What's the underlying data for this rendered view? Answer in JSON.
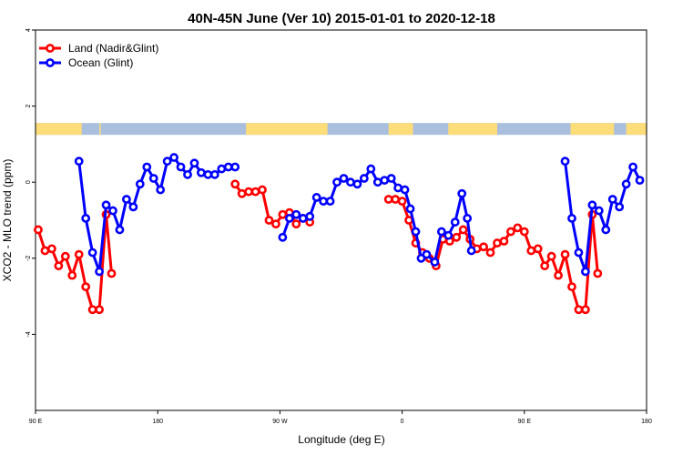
{
  "chart_data": {
    "type": "line",
    "title": "40N-45N June (Ver 10)   2015-01-01 to 2020-12-18",
    "xlabel": "Longitude (deg E)",
    "ylabel": "XCO2 - MLO trend (ppm)",
    "x_tick_labels": [
      "90 E",
      "180",
      "90 W",
      "0",
      "90 E",
      "180"
    ],
    "x_tick_values": [
      90,
      180,
      270,
      360,
      450,
      540
    ],
    "xlim": [
      90,
      540
    ],
    "y_tick_labels": [
      "-4",
      "-2",
      "0",
      "2",
      "4"
    ],
    "y_tick_values": [
      -4,
      -2,
      0,
      2,
      4
    ],
    "ylim": [
      -6,
      4
    ],
    "grid": false,
    "legend_position": "top-left",
    "land_ocean_strip": {
      "y": 1.4,
      "colors": {
        "land": "#fddc7a",
        "ocean": "#a9bfdd"
      },
      "land_segments": [
        [
          90,
          124
        ],
        [
          137,
          138
        ],
        [
          245,
          305
        ],
        [
          350,
          368
        ],
        [
          394,
          430
        ],
        [
          484,
          516
        ],
        [
          525,
          540
        ]
      ]
    },
    "series": [
      {
        "name": "Land (Nadir&Glint)",
        "color": "#ff0000",
        "points": [
          [
            92,
            -1.25
          ],
          [
            97,
            -1.8
          ],
          [
            102,
            -1.75
          ],
          [
            107,
            -2.2
          ],
          [
            112,
            -1.95
          ],
          [
            117,
            -2.45
          ],
          [
            122,
            -1.9
          ],
          [
            127,
            -2.75
          ],
          [
            132,
            -3.35
          ],
          [
            137,
            -3.35
          ],
          [
            142,
            -0.85
          ],
          [
            146,
            -2.4
          ],
          [
            237,
            -0.05
          ],
          [
            242,
            -0.3
          ],
          [
            247,
            -0.25
          ],
          [
            252,
            -0.25
          ],
          [
            257,
            -0.2
          ],
          [
            262,
            -1.0
          ],
          [
            267,
            -1.1
          ],
          [
            272,
            -0.85
          ],
          [
            277,
            -0.8
          ],
          [
            282,
            -1.1
          ],
          [
            287,
            -0.95
          ],
          [
            292,
            -1.05
          ],
          [
            350,
            -0.45
          ],
          [
            355,
            -0.45
          ],
          [
            360,
            -0.5
          ],
          [
            365,
            -1.0
          ],
          [
            370,
            -1.6
          ],
          [
            375,
            -1.85
          ],
          [
            380,
            -2.0
          ],
          [
            385,
            -2.2
          ],
          [
            390,
            -1.5
          ],
          [
            395,
            -1.55
          ],
          [
            400,
            -1.45
          ],
          [
            405,
            -1.25
          ],
          [
            410,
            -1.5
          ],
          [
            415,
            -1.75
          ],
          [
            420,
            -1.7
          ],
          [
            425,
            -1.85
          ],
          [
            430,
            -1.6
          ],
          [
            435,
            -1.55
          ],
          [
            440,
            -1.3
          ],
          [
            445,
            -1.2
          ],
          [
            450,
            -1.3
          ],
          [
            455,
            -1.8
          ],
          [
            460,
            -1.75
          ],
          [
            465,
            -2.2
          ],
          [
            470,
            -1.95
          ],
          [
            475,
            -2.45
          ],
          [
            480,
            -1.9
          ],
          [
            485,
            -2.75
          ],
          [
            490,
            -3.35
          ],
          [
            495,
            -3.35
          ],
          [
            500,
            -0.85
          ],
          [
            504,
            -2.4
          ]
        ]
      },
      {
        "name": "Ocean (Glint)",
        "color": "#0000ff",
        "points": [
          [
            122,
            0.55
          ],
          [
            127,
            -0.95
          ],
          [
            132,
            -1.85
          ],
          [
            137,
            -2.35
          ],
          [
            142,
            -0.6
          ],
          [
            147,
            -0.75
          ],
          [
            152,
            -1.25
          ],
          [
            157,
            -0.45
          ],
          [
            162,
            -0.65
          ],
          [
            167,
            -0.05
          ],
          [
            172,
            0.4
          ],
          [
            177,
            0.1
          ],
          [
            182,
            -0.2
          ],
          [
            187,
            0.55
          ],
          [
            192,
            0.65
          ],
          [
            197,
            0.4
          ],
          [
            202,
            0.2
          ],
          [
            207,
            0.5
          ],
          [
            212,
            0.25
          ],
          [
            217,
            0.2
          ],
          [
            222,
            0.2
          ],
          [
            227,
            0.35
          ],
          [
            232,
            0.4
          ],
          [
            237,
            0.4
          ],
          [
            272,
            -1.45
          ],
          [
            277,
            -0.95
          ],
          [
            282,
            -0.85
          ],
          [
            287,
            -0.95
          ],
          [
            292,
            -0.9
          ],
          [
            297,
            -0.4
          ],
          [
            302,
            -0.5
          ],
          [
            307,
            -0.5
          ],
          [
            312,
            0.0
          ],
          [
            317,
            0.1
          ],
          [
            322,
            0.0
          ],
          [
            327,
            -0.05
          ],
          [
            332,
            0.1
          ],
          [
            337,
            0.35
          ],
          [
            342,
            0.0
          ],
          [
            347,
            0.05
          ],
          [
            352,
            0.1
          ],
          [
            357,
            -0.15
          ],
          [
            362,
            -0.2
          ],
          [
            366,
            -0.7
          ],
          [
            370,
            -1.3
          ],
          [
            374,
            -2.0
          ],
          [
            378,
            -1.9
          ],
          [
            384,
            -2.1
          ],
          [
            389,
            -1.3
          ],
          [
            394,
            -1.4
          ],
          [
            399,
            -1.05
          ],
          [
            404,
            -0.3
          ],
          [
            408,
            -0.95
          ],
          [
            411,
            -1.8
          ],
          [
            480,
            0.55
          ],
          [
            485,
            -0.95
          ],
          [
            490,
            -1.85
          ],
          [
            495,
            -2.35
          ],
          [
            500,
            -0.6
          ],
          [
            505,
            -0.75
          ],
          [
            510,
            -1.25
          ],
          [
            515,
            -0.45
          ],
          [
            520,
            -0.65
          ],
          [
            525,
            -0.05
          ],
          [
            530,
            0.4
          ],
          [
            535,
            0.05
          ]
        ]
      }
    ]
  }
}
